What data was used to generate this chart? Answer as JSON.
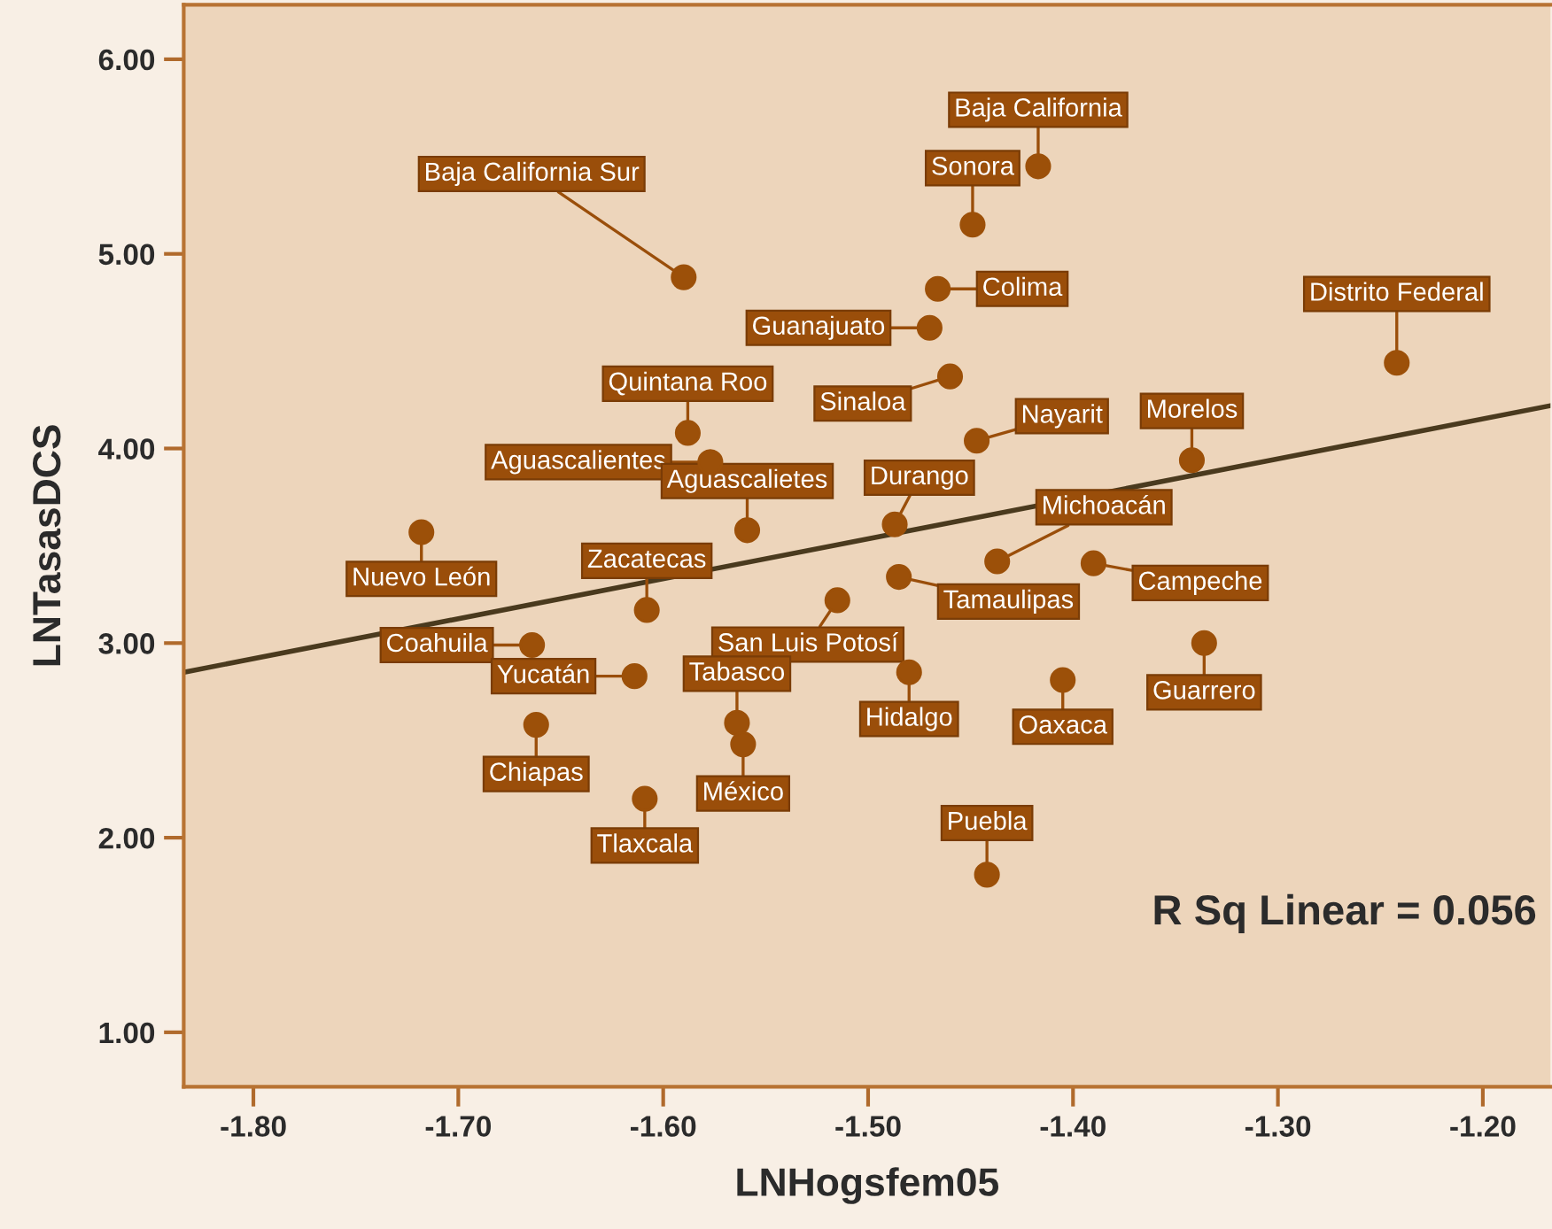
{
  "chart_data": {
    "type": "scatter",
    "xlabel": "LNHogsfem05",
    "ylabel": "LNTasasDCS",
    "xlim": [
      -1.834,
      -1.167
    ],
    "ylim": [
      0.72,
      6.28
    ],
    "xticks": [
      {
        "value": -1.8,
        "label": "-1.80"
      },
      {
        "value": -1.7,
        "label": "-1.70"
      },
      {
        "value": -1.6,
        "label": "-1.60"
      },
      {
        "value": -1.5,
        "label": "-1.50"
      },
      {
        "value": -1.4,
        "label": "-1.40"
      },
      {
        "value": -1.3,
        "label": "-1.30"
      },
      {
        "value": -1.2,
        "label": "-1.20"
      }
    ],
    "yticks": [
      {
        "value": 1,
        "label": "1.00"
      },
      {
        "value": 2,
        "label": "2.00"
      },
      {
        "value": 3,
        "label": "3.00"
      },
      {
        "value": 4,
        "label": "4.00"
      },
      {
        "value": 5,
        "label": "5.00"
      },
      {
        "value": 6,
        "label": "6.00"
      }
    ],
    "grid": false,
    "legend": false,
    "series": [
      {
        "color": "#9c5009",
        "marker": "circle",
        "x": [
          -1.59,
          -1.588,
          -1.577,
          -1.559,
          -1.718,
          -1.608,
          -1.417,
          -1.449,
          -1.466,
          -1.47,
          -1.242,
          -1.46,
          -1.447,
          -1.342,
          -1.487,
          -1.437,
          -1.39,
          -1.485,
          -1.515,
          -1.664,
          -1.614,
          -1.662,
          -1.564,
          -1.561,
          -1.609,
          -1.48,
          -1.405,
          -1.336,
          -1.442
        ],
        "values": [
          4.88,
          4.08,
          3.93,
          3.58,
          3.57,
          3.17,
          5.45,
          5.15,
          4.82,
          4.62,
          4.44,
          4.37,
          4.04,
          3.94,
          3.61,
          3.42,
          3.41,
          3.34,
          3.22,
          2.99,
          2.83,
          2.58,
          2.59,
          2.48,
          2.2,
          2.85,
          2.81,
          3.0,
          1.81
        ]
      },
      {
        "type": "line",
        "color": "#4a3a1e",
        "x": [
          -1.834,
          -1.167
        ],
        "values": [
          2.85,
          4.22
        ],
        "line_style": "solid"
      }
    ],
    "annotations": [
      {
        "text": "Baja California Sur",
        "x": -1.59,
        "y": 4.88
      },
      {
        "text": "Quintana Roo",
        "x": -1.588,
        "y": 4.08
      },
      {
        "text": "Aguascalientes",
        "x": -1.577,
        "y": 3.93
      },
      {
        "text": "Aguascalietes",
        "x": -1.559,
        "y": 3.58
      },
      {
        "text": "Nuevo León",
        "x": -1.718,
        "y": 3.57
      },
      {
        "text": "Zacatecas",
        "x": -1.608,
        "y": 3.17
      },
      {
        "text": "Baja California",
        "x": -1.417,
        "y": 5.45
      },
      {
        "text": "Sonora",
        "x": -1.449,
        "y": 5.15
      },
      {
        "text": "Colima",
        "x": -1.466,
        "y": 4.82
      },
      {
        "text": "Guanajuato",
        "x": -1.47,
        "y": 4.62
      },
      {
        "text": "Distrito Federal",
        "x": -1.242,
        "y": 4.44
      },
      {
        "text": "Sinaloa",
        "x": -1.46,
        "y": 4.37
      },
      {
        "text": "Nayarit",
        "x": -1.447,
        "y": 4.04
      },
      {
        "text": "Morelos",
        "x": -1.342,
        "y": 3.94
      },
      {
        "text": "Durango",
        "x": -1.487,
        "y": 3.61
      },
      {
        "text": "Michoacán",
        "x": -1.437,
        "y": 3.42
      },
      {
        "text": "Campeche",
        "x": -1.39,
        "y": 3.41
      },
      {
        "text": "Tamaulipas",
        "x": -1.485,
        "y": 3.34
      },
      {
        "text": "San Luis Potosí",
        "x": -1.515,
        "y": 3.22
      },
      {
        "text": "Coahuila",
        "x": -1.664,
        "y": 2.99
      },
      {
        "text": "Yucatán",
        "x": -1.614,
        "y": 2.83
      },
      {
        "text": "Chiapas",
        "x": -1.662,
        "y": 2.58
      },
      {
        "text": "Tabasco",
        "x": -1.564,
        "y": 2.59
      },
      {
        "text": "México",
        "x": -1.561,
        "y": 2.48
      },
      {
        "text": "Tlaxcala",
        "x": -1.609,
        "y": 2.2
      },
      {
        "text": "Hidalgo",
        "x": -1.48,
        "y": 2.85
      },
      {
        "text": "Oaxaca",
        "x": -1.405,
        "y": 2.81
      },
      {
        "text": "Guarrero",
        "x": -1.336,
        "y": 3.0
      },
      {
        "text": "Puebla",
        "x": -1.442,
        "y": 1.81
      },
      "R Sq Linear = 0.056"
    ]
  }
}
